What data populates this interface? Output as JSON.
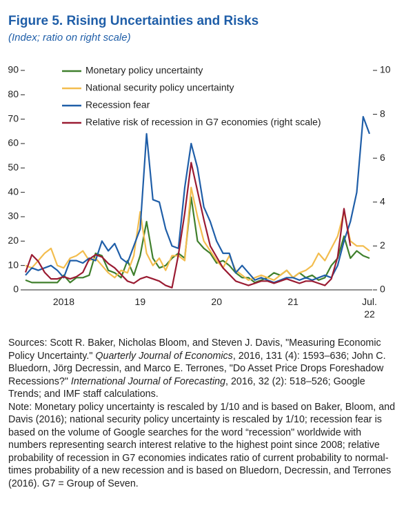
{
  "chart_data": {
    "type": "line",
    "title": "Figure 5. Rising Uncertainties and Risks",
    "subtitle": "(Index; ratio on right scale)",
    "categories": [
      null,
      null,
      null,
      null,
      null,
      null,
      "2018",
      null,
      null,
      null,
      null,
      null,
      null,
      null,
      null,
      null,
      null,
      null,
      "19",
      null,
      null,
      null,
      null,
      null,
      null,
      null,
      null,
      null,
      null,
      null,
      "20",
      null,
      null,
      null,
      null,
      null,
      null,
      null,
      null,
      null,
      null,
      null,
      "21",
      null,
      null,
      null,
      null,
      null,
      null,
      null,
      null,
      null,
      null,
      null,
      "Jul. 22"
    ],
    "ylim": [
      0,
      90
    ],
    "yticks": [
      0,
      10,
      20,
      30,
      40,
      50,
      60,
      70,
      80,
      90
    ],
    "y2lim": [
      0,
      10
    ],
    "y2ticks": [
      0,
      2,
      4,
      6,
      8,
      10
    ],
    "series": [
      {
        "name": "Monetary policy uncertainty",
        "color": "#3f7f2c",
        "values": [
          4,
          3,
          3,
          3,
          3,
          3,
          6,
          3,
          5,
          5,
          6,
          15,
          14,
          8,
          7,
          5,
          12,
          6,
          14,
          28,
          13,
          9,
          10,
          13,
          15,
          13,
          38,
          20,
          17,
          15,
          11,
          12,
          10,
          7,
          5,
          5,
          3,
          4,
          5,
          7,
          6,
          8,
          5,
          7,
          5,
          6,
          4,
          5,
          10,
          13,
          22,
          13,
          16,
          14,
          13
        ]
      },
      {
        "name": "National security policy uncertainty",
        "color": "#f3bd4e",
        "values": [
          10,
          9,
          12,
          15,
          17,
          10,
          9,
          13,
          14,
          16,
          12,
          13,
          10,
          7,
          5,
          8,
          7,
          14,
          32,
          15,
          10,
          13,
          8,
          14,
          14,
          12,
          42,
          30,
          20,
          16,
          12,
          9,
          14,
          8,
          6,
          4,
          5,
          6,
          5,
          4,
          6,
          8,
          5,
          7,
          8,
          10,
          15,
          12,
          17,
          22,
          32,
          20,
          18,
          18,
          16
        ]
      },
      {
        "name": "Recession fear",
        "color": "#1f5ea8",
        "values": [
          6,
          9,
          8,
          9,
          10,
          8,
          5,
          12,
          12,
          11,
          13,
          12,
          20,
          16,
          19,
          13,
          11,
          18,
          25,
          64,
          37,
          36,
          25,
          18,
          17,
          42,
          60,
          50,
          34,
          28,
          20,
          15,
          15,
          7,
          10,
          7,
          4,
          5,
          4,
          3,
          4,
          5,
          5,
          4,
          5,
          4,
          5,
          6,
          5,
          10,
          20,
          28,
          40,
          71,
          64
        ]
      },
      {
        "name": "Relative risk of recession in G7 economies (right scale)",
        "color": "#9a1b32",
        "axis": "y2",
        "values": [
          0.8,
          1.6,
          1.3,
          0.8,
          0.5,
          0.5,
          0.6,
          0.5,
          0.6,
          0.8,
          1.4,
          1.6,
          1.5,
          1.2,
          1.0,
          0.7,
          0.4,
          0.3,
          0.5,
          0.6,
          0.5,
          0.4,
          0.2,
          0.1,
          1.6,
          3.5,
          5.8,
          4.5,
          3.2,
          2.0,
          1.5,
          1.0,
          0.7,
          0.4,
          0.3,
          0.2,
          0.3,
          0.4,
          0.4,
          0.3,
          0.4,
          0.5,
          0.4,
          0.3,
          0.4,
          0.4,
          0.3,
          0.2,
          0.5,
          1.5,
          3.7,
          2.0,
          null,
          null,
          null
        ]
      }
    ]
  },
  "notes": {
    "sources": [
      "Sources: Scott R. Baker, Nicholas Bloom, and Steven J. Davis, \"Measuring Economic Policy Uncertainty.\" ",
      "Quarterly Journal of Economics",
      ", 2016, 131 (4): 1593–636; John C. Bluedorn, Jörg Decressin, and Marco E. Terrones, \"Do Asset Price Drops Foreshadow Recessions?\" ",
      "International Journal of Forecasting",
      ", 2016, 32 (2): 518–526; Google Trends; and IMF staff calculations."
    ],
    "note": "Note: Monetary policy uncertainty is rescaled by 1/10 and is based on Baker, Bloom, and Davis (2016); national security policy uncertainty is rescaled by 1/10; recession fear is based on the volume of Google searches for the word “recession\" worldwide with numbers representing search interest relative to the highest point since 2008; relative probability of recession in G7 economies indicates ratio of current probability to normal-times probability of a new recession and is based on Bluedorn, Decressin, and Terrones (2016). G7 = Group of Seven."
  }
}
